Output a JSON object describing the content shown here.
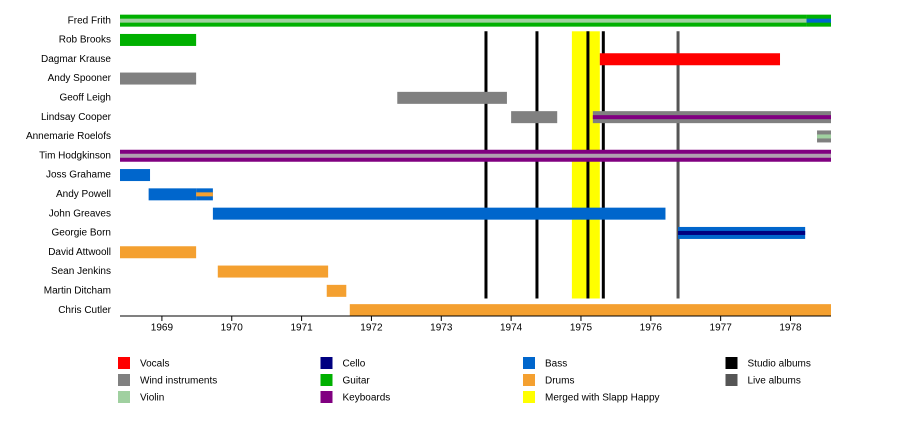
{
  "chart_data": {
    "type": "timeline",
    "xlim": [
      1968.4,
      1978.58
    ],
    "xticks": [
      1969,
      1970,
      1971,
      1972,
      1973,
      1974,
      1975,
      1976,
      1977,
      1978
    ],
    "members": [
      {
        "name": "Fred Frith",
        "bars": [
          {
            "start": 1968.4,
            "end": 1978.23,
            "color": "#00b000",
            "stripe": "#a0d0a0"
          },
          {
            "start": 1978.23,
            "end": 1978.58,
            "color": "#00b000",
            "stripe": "#0066cc"
          }
        ]
      },
      {
        "name": "Rob Brooks",
        "bars": [
          {
            "start": 1968.4,
            "end": 1969.49,
            "color": "#00b000"
          }
        ]
      },
      {
        "name": "Dagmar Krause",
        "bars": [
          {
            "start": 1975.27,
            "end": 1977.85,
            "color": "#ff0000"
          }
        ]
      },
      {
        "name": "Andy Spooner",
        "bars": [
          {
            "start": 1968.4,
            "end": 1969.49,
            "color": "#808080"
          }
        ]
      },
      {
        "name": "Geoff Leigh",
        "bars": [
          {
            "start": 1972.37,
            "end": 1973.94,
            "color": "#808080"
          }
        ]
      },
      {
        "name": "Lindsay Cooper",
        "bars": [
          {
            "start": 1974.0,
            "end": 1974.66,
            "color": "#808080"
          },
          {
            "start": 1975.17,
            "end": 1978.58,
            "color": "#808080",
            "stripe": "#800080"
          }
        ]
      },
      {
        "name": "Annemarie Roelofs",
        "bars": [
          {
            "start": 1978.38,
            "end": 1978.58,
            "color": "#808080",
            "stripe": "#a0d0a0"
          }
        ]
      },
      {
        "name": "Tim Hodgkinson",
        "bars": [
          {
            "start": 1968.4,
            "end": 1978.58,
            "color": "#800080",
            "stripe": "#b0a0b0"
          }
        ]
      },
      {
        "name": "Joss Grahame",
        "bars": [
          {
            "start": 1968.4,
            "end": 1968.83,
            "color": "#0066cc"
          }
        ]
      },
      {
        "name": "Andy Powell",
        "bars": [
          {
            "start": 1968.81,
            "end": 1969.49,
            "color": "#0066cc"
          },
          {
            "start": 1969.49,
            "end": 1969.73,
            "color": "#0066cc",
            "stripe": "#f4a030"
          }
        ]
      },
      {
        "name": "John Greaves",
        "bars": [
          {
            "start": 1969.73,
            "end": 1976.21,
            "color": "#0066cc"
          }
        ]
      },
      {
        "name": "Georgie Born",
        "bars": [
          {
            "start": 1976.39,
            "end": 1978.21,
            "color": "#0066cc",
            "stripe": "#000080"
          }
        ]
      },
      {
        "name": "David Attwooll",
        "bars": [
          {
            "start": 1968.4,
            "end": 1969.49,
            "color": "#f4a030"
          }
        ]
      },
      {
        "name": "Sean Jenkins",
        "bars": [
          {
            "start": 1969.8,
            "end": 1971.38,
            "color": "#f4a030"
          }
        ]
      },
      {
        "name": "Martin Ditcham",
        "bars": [
          {
            "start": 1971.36,
            "end": 1971.64,
            "color": "#f4a030"
          }
        ]
      },
      {
        "name": "Chris Cutler",
        "bars": [
          {
            "start": 1971.69,
            "end": 1978.58,
            "color": "#f4a030"
          }
        ]
      }
    ],
    "legend": [
      {
        "label": "Vocals",
        "color": "#ff0000"
      },
      {
        "label": "Wind instruments",
        "color": "#808080"
      },
      {
        "label": "Violin",
        "color": "#a0d0a0"
      },
      {
        "label": "Cello",
        "color": "#000080"
      },
      {
        "label": "Guitar",
        "color": "#00b000"
      },
      {
        "label": "Keyboards",
        "color": "#800080"
      },
      {
        "label": "Bass",
        "color": "#0066cc"
      },
      {
        "label": "Drums",
        "color": "#f4a030"
      },
      {
        "label": "Merged with Slapp Happy",
        "color": "#ffff00",
        "span": [
          1974.87,
          1975.27
        ]
      },
      {
        "label": "Studio albums",
        "color": "#000000",
        "lines": [
          1973.64,
          1974.37,
          1975.1,
          1975.32
        ]
      },
      {
        "label": "Live albums",
        "color": "#555555",
        "lines": [
          1976.39
        ]
      }
    ]
  }
}
